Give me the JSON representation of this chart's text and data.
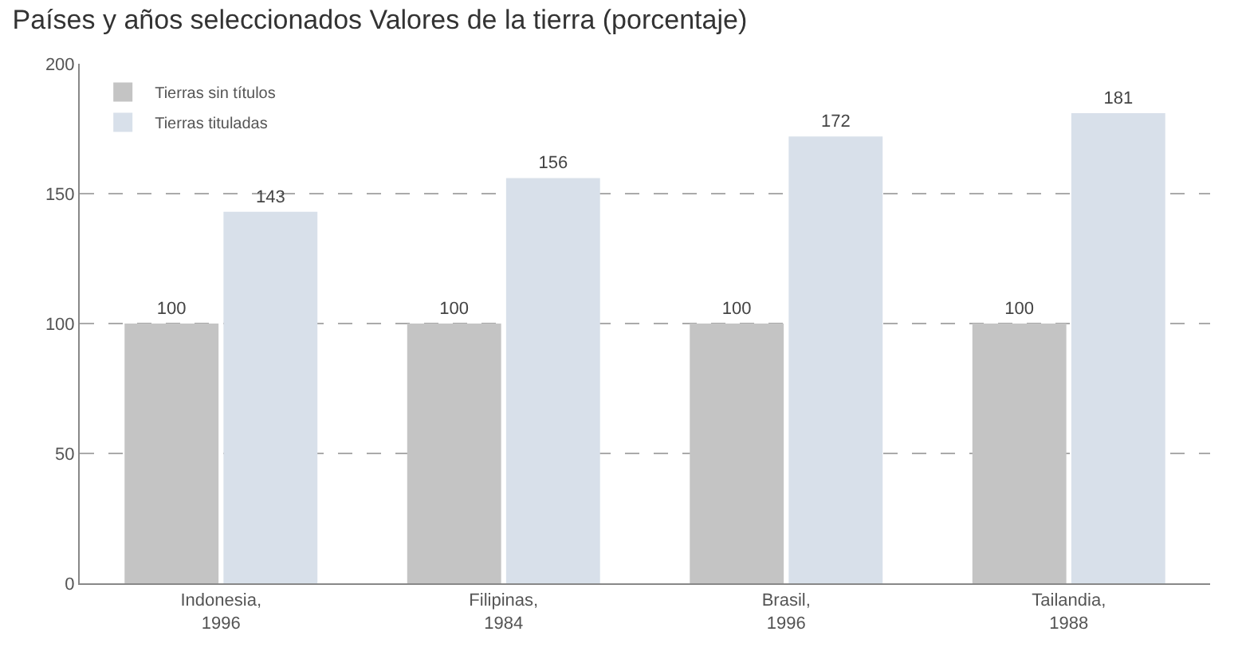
{
  "chart_data": {
    "type": "bar",
    "title": "Países y años seleccionados Valores de la tierra (porcentaje)",
    "categories": [
      "Indonesia, 1996",
      "Filipinas, 1984",
      "Brasil, 1996",
      "Tailandia, 1988"
    ],
    "series": [
      {
        "name": "Tierras sin títulos",
        "color": "#c4c4c4",
        "values": [
          100,
          100,
          100,
          100
        ]
      },
      {
        "name": "Tierras tituladas",
        "color": "#d8e0ea",
        "values": [
          143,
          156,
          172,
          181
        ]
      }
    ],
    "ylim": [
      0,
      200
    ],
    "yticks": [
      0,
      50,
      100,
      150,
      200
    ],
    "grid": "y",
    "data_labels": true,
    "legend": "top left"
  }
}
